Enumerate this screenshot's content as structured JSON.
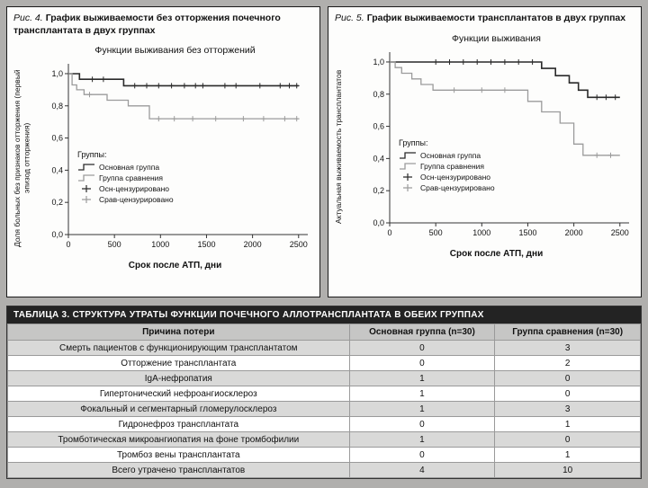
{
  "chart_data": [
    {
      "type": "line",
      "style": "step",
      "figure_label": "Рис. 4.",
      "caption": "График выживаемости без отторжения почечного трансплантата в двух группах",
      "title": "Функции выживания без отторжений",
      "ylabel": "Доля больных без признаков отторжения (первый эпизод отторжения)",
      "xlabel": "Срок после АТП, дни",
      "xlim": [
        0,
        2600
      ],
      "ylim": [
        0,
        1.05
      ],
      "xticks": [
        0,
        500,
        1000,
        1500,
        2000,
        2500
      ],
      "yticks": [
        0,
        0.2,
        0.4,
        0.6,
        0.8,
        1.0
      ],
      "ytick_labels": [
        "0,0",
        "0,2",
        "0,4",
        "0,6",
        "0,8",
        "1,0"
      ],
      "legend_title": "Группы:",
      "legend": [
        {
          "label": "Основная группа",
          "type": "line",
          "color": "#2a2a2a"
        },
        {
          "label": "Группа сравнения",
          "type": "line",
          "color": "#9b9b9b"
        },
        {
          "label": "Осн-цензурировано",
          "type": "cross",
          "color": "#2a2a2a"
        },
        {
          "label": "Срав-цензурировано",
          "type": "cross",
          "color": "#9b9b9b"
        }
      ],
      "series": [
        {
          "name": "Основная группа",
          "color": "#2a2a2a",
          "width": 1.6,
          "steps": [
            [
              0,
              1.0
            ],
            [
              120,
              0.965
            ],
            [
              600,
              0.925
            ],
            [
              2500,
              0.925
            ]
          ],
          "censors": [
            [
              260,
              0.965
            ],
            [
              380,
              0.965
            ],
            [
              720,
              0.925
            ],
            [
              850,
              0.925
            ],
            [
              980,
              0.925
            ],
            [
              1120,
              0.925
            ],
            [
              1260,
              0.925
            ],
            [
              1380,
              0.925
            ],
            [
              1460,
              0.925
            ],
            [
              1700,
              0.925
            ],
            [
              1820,
              0.925
            ],
            [
              2080,
              0.925
            ],
            [
              2300,
              0.925
            ],
            [
              2400,
              0.925
            ],
            [
              2480,
              0.925
            ]
          ]
        },
        {
          "name": "Группа сравнения",
          "color": "#9b9b9b",
          "width": 1.3,
          "steps": [
            [
              0,
              1.0
            ],
            [
              40,
              0.93
            ],
            [
              90,
              0.9
            ],
            [
              170,
              0.87
            ],
            [
              420,
              0.835
            ],
            [
              650,
              0.8
            ],
            [
              880,
              0.72
            ],
            [
              2500,
              0.72
            ]
          ],
          "censors": [
            [
              230,
              0.87
            ],
            [
              980,
              0.72
            ],
            [
              1150,
              0.72
            ],
            [
              1350,
              0.72
            ],
            [
              1600,
              0.72
            ],
            [
              1900,
              0.72
            ],
            [
              2120,
              0.72
            ],
            [
              2350,
              0.72
            ],
            [
              2480,
              0.72
            ]
          ]
        }
      ]
    },
    {
      "type": "line",
      "style": "step",
      "figure_label": "Рис. 5.",
      "caption": "График выживаемости трансплантатов в двух группах",
      "title": "Функции выживания",
      "ylabel": "Актуальная выживаемость трансплантатов",
      "xlabel": "Срок после АТП, дни",
      "xlim": [
        0,
        2600
      ],
      "ylim": [
        0,
        1.05
      ],
      "xticks": [
        0,
        500,
        1000,
        1500,
        2000,
        2500
      ],
      "yticks": [
        0,
        0.2,
        0.4,
        0.6,
        0.8,
        1.0
      ],
      "ytick_labels": [
        "0,0",
        "0,2",
        "0,4",
        "0,6",
        "0,8",
        "1,0"
      ],
      "legend_title": "Группы:",
      "legend": [
        {
          "label": "Основная группа",
          "type": "line",
          "color": "#2a2a2a"
        },
        {
          "label": "Группа сравнения",
          "type": "line",
          "color": "#9b9b9b"
        },
        {
          "label": "Осн-цензурировано",
          "type": "cross",
          "color": "#2a2a2a"
        },
        {
          "label": "Срав-цензурировано",
          "type": "cross",
          "color": "#9b9b9b"
        }
      ],
      "series": [
        {
          "name": "Основная группа",
          "color": "#2a2a2a",
          "width": 1.6,
          "steps": [
            [
              0,
              1.0
            ],
            [
              1650,
              0.96
            ],
            [
              1800,
              0.915
            ],
            [
              1950,
              0.87
            ],
            [
              2050,
              0.825
            ],
            [
              2150,
              0.78
            ],
            [
              2500,
              0.78
            ]
          ],
          "censors": [
            [
              500,
              1.0
            ],
            [
              650,
              1.0
            ],
            [
              800,
              1.0
            ],
            [
              950,
              1.0
            ],
            [
              1100,
              1.0
            ],
            [
              1250,
              1.0
            ],
            [
              1400,
              1.0
            ],
            [
              1550,
              1.0
            ],
            [
              2250,
              0.78
            ],
            [
              2350,
              0.78
            ],
            [
              2450,
              0.78
            ]
          ]
        },
        {
          "name": "Группа сравнения",
          "color": "#9b9b9b",
          "width": 1.3,
          "steps": [
            [
              0,
              1.0
            ],
            [
              60,
              0.965
            ],
            [
              130,
              0.93
            ],
            [
              240,
              0.895
            ],
            [
              340,
              0.86
            ],
            [
              470,
              0.825
            ],
            [
              1500,
              0.755
            ],
            [
              1650,
              0.69
            ],
            [
              1850,
              0.62
            ],
            [
              2000,
              0.49
            ],
            [
              2100,
              0.42
            ],
            [
              2500,
              0.42
            ]
          ],
          "censors": [
            [
              700,
              0.825
            ],
            [
              1000,
              0.825
            ],
            [
              1250,
              0.825
            ],
            [
              2250,
              0.42
            ],
            [
              2400,
              0.42
            ]
          ]
        }
      ]
    },
    {
      "type": "table",
      "title": "ТАБЛИЦА 3. СТРУКТУРА УТРАТЫ ФУНКЦИИ ПОЧЕЧНОГО АЛЛОТРАНСПЛАНТАТА В ОБЕИХ ГРУППАХ",
      "columns": [
        "Причина потери",
        "Основная группа (n=30)",
        "Группа сравнения (n=30)"
      ],
      "rows": [
        [
          "Смерть пациентов с функционирующим трансплантатом",
          "0",
          "3"
        ],
        [
          "Отторжение трансплантата",
          "0",
          "2"
        ],
        [
          "IgA-нефропатия",
          "1",
          "0"
        ],
        [
          "Гипертонический нефроангиосклероз",
          "1",
          "0"
        ],
        [
          "Фокальный и сегментарный гломерулосклероз",
          "1",
          "3"
        ],
        [
          "Гидронефроз трансплантата",
          "0",
          "1"
        ],
        [
          "Тромботическая микроангиопатия на фоне тромбофилии",
          "1",
          "0"
        ],
        [
          "Тромбоз вены трансплантата",
          "0",
          "1"
        ],
        [
          "Всего утрачено трансплантатов",
          "4",
          "10"
        ]
      ]
    }
  ]
}
